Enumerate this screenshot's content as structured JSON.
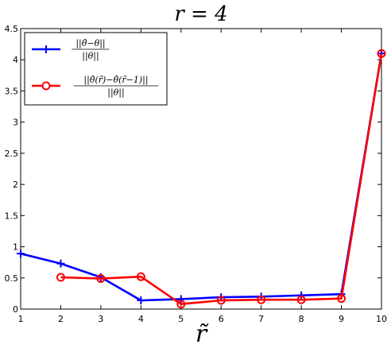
{
  "chart_data": {
    "type": "line",
    "title": "r = 4",
    "xlabel": "r̃",
    "ylabel": "",
    "xlim": [
      1,
      10
    ],
    "ylim": [
      0,
      4.5
    ],
    "xticks": [
      1,
      2,
      3,
      4,
      5,
      6,
      7,
      8,
      9,
      10
    ],
    "yticks": [
      0,
      0.5,
      1,
      1.5,
      2,
      2.5,
      3,
      3.5,
      4,
      4.5
    ],
    "grid": false,
    "legend_position": "top-left",
    "series": [
      {
        "name": "||θ̂−θ|| / ||θ||",
        "color": "#0000ff",
        "marker": "plus",
        "x": [
          1,
          2,
          3,
          4,
          5,
          6,
          7,
          8,
          9,
          10
        ],
        "y": [
          0.89,
          0.73,
          0.51,
          0.14,
          0.16,
          0.19,
          0.2,
          0.22,
          0.24,
          4.1
        ]
      },
      {
        "name": "||θ̂(r̃)−θ̂(r̃−1)|| / ||θ||",
        "color": "#ff0000",
        "marker": "circle",
        "x": [
          2,
          3,
          4,
          5,
          6,
          7,
          8,
          9,
          10
        ],
        "y": [
          0.51,
          0.49,
          0.52,
          0.08,
          0.14,
          0.15,
          0.15,
          0.17,
          4.1
        ]
      }
    ]
  }
}
